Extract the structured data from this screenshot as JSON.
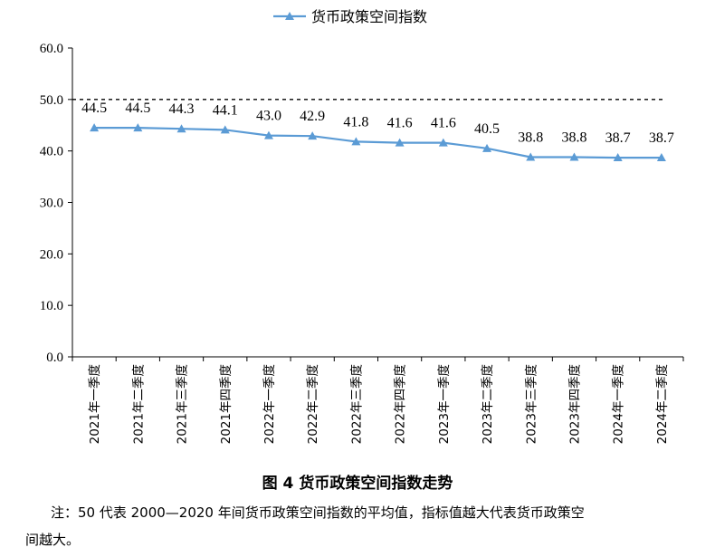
{
  "chart_data": {
    "type": "line",
    "legend_position": "top",
    "categories": [
      "2021年一季度",
      "2021年二季度",
      "2021年三季度",
      "2021年四季度",
      "2022年一季度",
      "2022年二季度",
      "2022年三季度",
      "2022年四季度",
      "2023年一季度",
      "2023年二季度",
      "2023年三季度",
      "2023年四季度",
      "2024年一季度",
      "2024年二季度"
    ],
    "series": [
      {
        "name": "货币政策空间指数",
        "values": [
          44.5,
          44.5,
          44.3,
          44.1,
          43.0,
          42.9,
          41.8,
          41.6,
          41.6,
          40.5,
          38.8,
          38.8,
          38.7,
          38.7
        ],
        "color": "#5b9bd5",
        "marker": "triangle"
      }
    ],
    "value_labels": [
      "44.5",
      "44.5",
      "44.3",
      "44.1",
      "43.0",
      "42.9",
      "41.8",
      "41.6",
      "41.6",
      "40.5",
      "38.8",
      "38.8",
      "38.7",
      "38.7"
    ],
    "reference_line": {
      "value": 50,
      "style": "dashed"
    },
    "ylim": [
      0,
      60
    ],
    "yticks": [
      "0.0",
      "10.0",
      "20.0",
      "30.0",
      "40.0",
      "50.0",
      "60.0"
    ],
    "grid": false
  },
  "caption": {
    "fig_no": "图 4",
    "title": "货币政策空间指数走势"
  },
  "note": {
    "line1": "注：50 代表 2000—2020 年间货币政策空间指数的平均值，指标值越大代表货币政策空",
    "line2": "间越大。"
  }
}
